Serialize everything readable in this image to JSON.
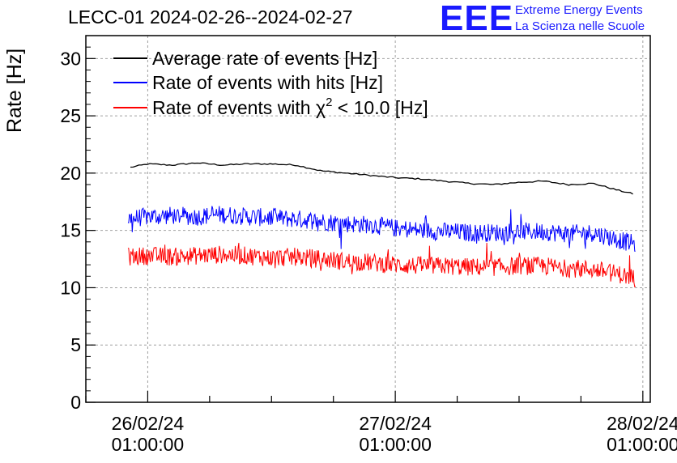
{
  "title": "LECC-01 2024-02-26--2024-02-27",
  "logo": {
    "mark": "EEE",
    "line1": "Extreme Energy Events",
    "line2": "La Scienza nelle Scuole"
  },
  "colors": {
    "average": "#000000",
    "hits": "#0000ff",
    "chi2": "#ff0000"
  },
  "chart_data": {
    "type": "line",
    "title": "LECC-01 2024-02-26--2024-02-27",
    "ylabel": "Rate [Hz]",
    "xlabel": "",
    "ylim": [
      0,
      32
    ],
    "xlim_days": [
      -0.25,
      2.03
    ],
    "y_ticks": [
      0,
      5,
      10,
      15,
      20,
      25,
      30
    ],
    "x_ticks": [
      {
        "date": "26/02/24",
        "time": "01:00:00",
        "day": 0
      },
      {
        "date": "27/02/24",
        "time": "01:00:00",
        "day": 1
      },
      {
        "date": "28/02/24",
        "time": "01:00:00",
        "day": 2
      }
    ],
    "grid": true,
    "legend_position": "top-left",
    "series": [
      {
        "name": "Average rate of events [Hz]",
        "color": "#000000",
        "noisy": false,
        "x_days": [
          -0.07,
          0.0,
          0.1,
          0.2,
          0.3,
          0.4,
          0.5,
          0.6,
          0.7,
          0.8,
          0.9,
          1.0,
          1.1,
          1.2,
          1.3,
          1.4,
          1.5,
          1.6,
          1.7,
          1.8,
          1.9,
          1.96
        ],
        "values": [
          20.5,
          20.8,
          20.7,
          20.9,
          20.7,
          20.8,
          20.8,
          20.7,
          20.2,
          20.0,
          19.8,
          19.6,
          19.5,
          19.3,
          19.1,
          19.0,
          19.2,
          19.3,
          19.0,
          19.1,
          18.5,
          18.2
        ]
      },
      {
        "name": "Rate of events with hits [Hz]",
        "color": "#0000ff",
        "noisy": true,
        "x_days": [
          -0.08,
          0.0,
          0.1,
          0.2,
          0.3,
          0.4,
          0.5,
          0.6,
          0.7,
          0.8,
          0.9,
          1.0,
          1.1,
          1.2,
          1.3,
          1.4,
          1.5,
          1.6,
          1.7,
          1.8,
          1.9,
          1.97
        ],
        "values": [
          16.0,
          16.2,
          16.3,
          16.2,
          16.4,
          16.2,
          16.1,
          16.0,
          15.8,
          15.6,
          15.5,
          15.2,
          15.0,
          14.9,
          14.8,
          14.8,
          14.9,
          14.9,
          14.7,
          14.8,
          14.2,
          13.8
        ]
      },
      {
        "name": "Rate of events with χ2 < 10.0 [Hz]",
        "color": "#ff0000",
        "noisy": true,
        "x_days": [
          -0.08,
          0.0,
          0.1,
          0.2,
          0.3,
          0.4,
          0.5,
          0.6,
          0.7,
          0.8,
          0.9,
          1.0,
          1.1,
          1.2,
          1.3,
          1.4,
          1.5,
          1.6,
          1.7,
          1.8,
          1.9,
          1.97
        ],
        "values": [
          12.7,
          12.8,
          12.7,
          12.8,
          12.9,
          12.8,
          12.6,
          12.7,
          12.5,
          12.3,
          12.2,
          12.0,
          11.9,
          11.9,
          11.8,
          11.8,
          11.9,
          11.9,
          11.7,
          11.6,
          11.2,
          10.8
        ]
      }
    ]
  }
}
